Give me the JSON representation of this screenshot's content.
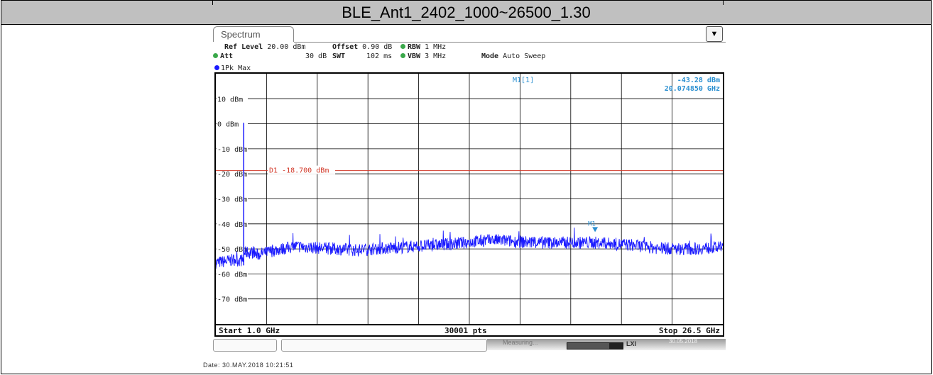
{
  "title": "BLE_Ant1_2402_1000~26500_1.30",
  "instrument": {
    "tab_label": "Spectrum",
    "ref_level_label": "Ref Level",
    "ref_level_value": "20.00 dBm",
    "offset_label": "Offset",
    "offset_value": "0.90 dB",
    "rbw_label": "RBW",
    "rbw_value": "1 MHz",
    "att_label": "Att",
    "att_value": "30 dB",
    "swt_label": "SWT",
    "swt_value": "102 ms",
    "vbw_label": "VBW",
    "vbw_value": "3 MHz",
    "mode_label": "Mode",
    "mode_value": "Auto Sweep",
    "trace_label": "1Pk Max"
  },
  "marker": {
    "readout_name": "M1[1]",
    "readout_level": "-43.28 dBm",
    "readout_freq": "20.074850 GHz",
    "label": "M1"
  },
  "display_line": {
    "label": "D1  -18.700 dBm"
  },
  "footer": {
    "start": "Start 1.0 GHz",
    "points": "30001 pts",
    "stop": "Stop 26.5 GHz"
  },
  "status": {
    "measuring": "Measuring...",
    "lxi": "LXI",
    "datetime": "30.05.2018",
    "progress": 0.75
  },
  "date_line": "Date: 30.MAY.2018  10:21:51",
  "colors": {
    "trace": "#1a1aff",
    "display_line": "#d23a2a",
    "marker": "#2a8fd0",
    "grid": "#000000"
  },
  "chart_data": {
    "type": "line",
    "xlim": [
      1.0,
      26.5
    ],
    "ylim": [
      -80,
      20
    ],
    "y_ticks": [
      10,
      0,
      -10,
      -20,
      -30,
      -40,
      -50,
      -60,
      -70
    ],
    "y_tick_labels": [
      "10 dBm",
      "0 dBm",
      "-10 dBm",
      "-20 dBm",
      "-30 dBm",
      "-40 dBm",
      "-50 dBm",
      "-60 dBm",
      "-70 dBm"
    ],
    "grid": true,
    "display_line_dbm": -18.7,
    "marker": {
      "x": 20.07485,
      "y": -43.28
    },
    "peak": {
      "x": 2.402,
      "y": 0.4
    },
    "series": [
      {
        "x": [
          1.0,
          1.5,
          2.0,
          2.402,
          3.0,
          4.0,
          5.0,
          6.0,
          7.0,
          8.0,
          9.0,
          10.0,
          11.0,
          12.0,
          13.0,
          14.0,
          15.0,
          16.0,
          17.0,
          18.0,
          19.0,
          20.0,
          21.0,
          22.0,
          23.0,
          24.0,
          25.0,
          26.0,
          26.5
        ],
        "y": [
          -55.5,
          -55.0,
          -54.2,
          0.4,
          -52.5,
          -50.5,
          -49.0,
          -49.5,
          -50.0,
          -50.5,
          -50.0,
          -49.5,
          -49.0,
          -48.5,
          -48.0,
          -47.0,
          -46.5,
          -47.0,
          -47.5,
          -47.5,
          -47.5,
          -47.5,
          -48.0,
          -48.5,
          -49.5,
          -50.0,
          -50.0,
          -49.5,
          -49.5
        ]
      }
    ]
  }
}
